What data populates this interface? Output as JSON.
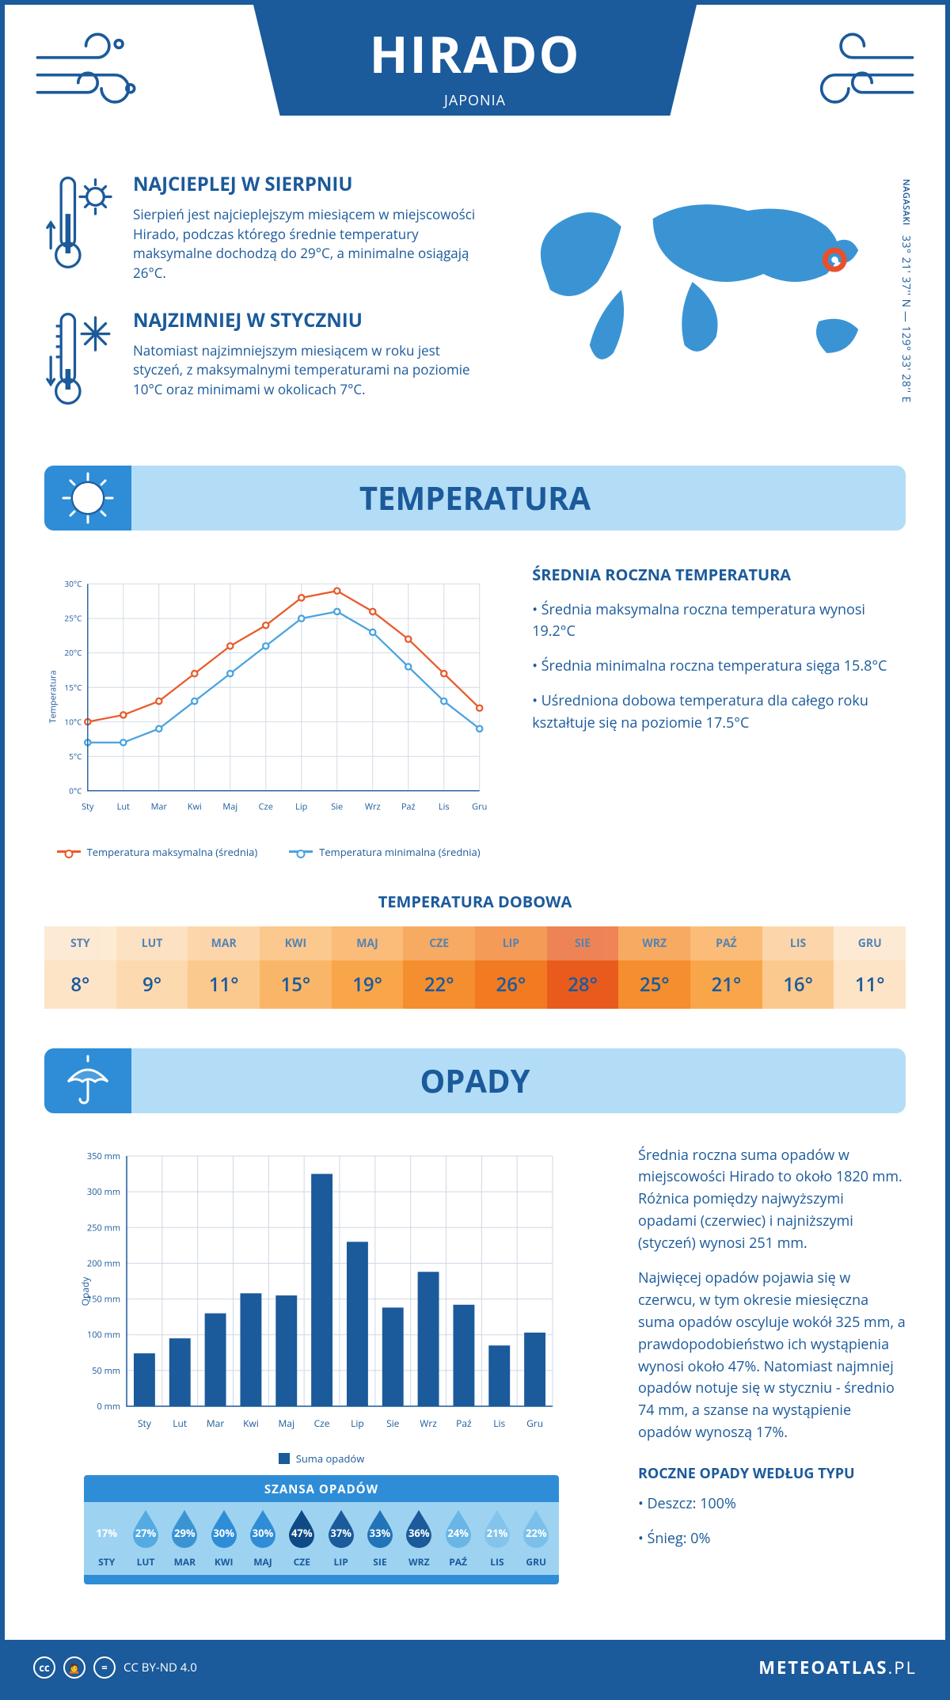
{
  "header": {
    "city": "HIRADO",
    "country": "JAPONIA",
    "region": "NAGASAKI",
    "coords": "33° 21' 37'' N — 129° 33' 28'' E",
    "marker": {
      "cx_pct": 82,
      "cy_pct": 40
    }
  },
  "colors": {
    "brand": "#1b5a9b",
    "light_blue_banner": "#b3ddf6",
    "mid_blue": "#2e8dd6",
    "grid": "#cfd8e3",
    "max_line": "#e95b2b",
    "min_line": "#4aa3e0",
    "bar_fill": "#1b5a9b",
    "map_fill": "#3a94d4",
    "marker_ring": "#e9502b"
  },
  "facts": {
    "warm": {
      "title": "NAJCIEPLEJ W SIERPNIU",
      "body": "Sierpień jest najcieplejszym miesiącem w miejscowości Hirado, podczas którego średnie temperatury maksymalne dochodzą do 29°C, a minimalne osiągają 26°C."
    },
    "cold": {
      "title": "NAJZIMNIEJ W STYCZNIU",
      "body": "Natomiast najzimniejszym miesiącem w roku jest styczeń, z maksymalnymi temperaturami na poziomie 10°C oraz minimami w okolicach 7°C."
    }
  },
  "months_short_upper": [
    "STY",
    "LUT",
    "MAR",
    "KWI",
    "MAJ",
    "CZE",
    "LIP",
    "SIE",
    "WRZ",
    "PAŹ",
    "LIS",
    "GRU"
  ],
  "months_short": [
    "Sty",
    "Lut",
    "Mar",
    "Kwi",
    "Maj",
    "Cze",
    "Lip",
    "Sie",
    "Wrz",
    "Paź",
    "Lis",
    "Gru"
  ],
  "temperature": {
    "section_title": "TEMPERATURA",
    "y_label": "Temperatura",
    "y_ticks": [
      0,
      5,
      10,
      15,
      20,
      25,
      30
    ],
    "y_tick_labels": [
      "0°C",
      "5°C",
      "10°C",
      "15°C",
      "20°C",
      "25°C",
      "30°C"
    ],
    "ylim": [
      0,
      30
    ],
    "max_series": [
      10,
      11,
      13,
      17,
      21,
      24,
      28,
      29,
      26,
      22,
      17,
      12
    ],
    "min_series": [
      7,
      7,
      9,
      13,
      17,
      21,
      25,
      26,
      23,
      18,
      13,
      9
    ],
    "legend_max": "Temperatura maksymalna (średnia)",
    "legend_min": "Temperatura minimalna (średnia)",
    "summary_title": "ŚREDNIA ROCZNA TEMPERATURA",
    "summary_items": [
      "• Średnia maksymalna roczna temperatura wynosi 19.2°C",
      "• Średnia minimalna roczna temperatura sięga 15.8°C",
      "• Uśredniona dobowa temperatura dla całego roku kształtuje się na poziomie 17.5°C"
    ],
    "daily_title": "TEMPERATURA DOBOWA",
    "daily_values": [
      "8°",
      "9°",
      "11°",
      "15°",
      "19°",
      "22°",
      "26°",
      "28°",
      "25°",
      "21°",
      "16°",
      "11°"
    ],
    "daily_colors": [
      "#fde4c6",
      "#fcd9ae",
      "#fbc98e",
      "#fab668",
      "#f9a64b",
      "#f58e2e",
      "#f27a21",
      "#e95b1d",
      "#f58e2e",
      "#f9a64b",
      "#fbc98e",
      "#fde4c6"
    ]
  },
  "precip": {
    "section_title": "OPADY",
    "y_label": "Opady",
    "y_ticks": [
      0,
      50,
      100,
      150,
      200,
      250,
      300,
      350
    ],
    "y_tick_labels": [
      "0 mm",
      "50 mm",
      "100 mm",
      "150 mm",
      "200 mm",
      "250 mm",
      "300 mm",
      "350 mm"
    ],
    "ylim": [
      0,
      350
    ],
    "values": [
      74,
      95,
      130,
      158,
      155,
      325,
      230,
      138,
      188,
      142,
      85,
      103
    ],
    "legend": "Suma opadów",
    "summary_p1": "Średnia roczna suma opadów w miejscowości Hirado to około 1820 mm. Różnica pomiędzy najwyższymi opadami (czerwiec) i najniższymi (styczeń) wynosi 251 mm.",
    "summary_p2": "Najwięcej opadów pojawia się w czerwcu, w tym okresie miesięczna suma opadów oscyluje wokół 325 mm, a prawdopodobieństwo ich wystąpienia wynosi około 47%. Natomiast najmniej opadów notuje się w styczniu - średnio 74 mm, a szanse na wystąpienie opadów wynoszą 17%.",
    "chance_title": "SZANSA OPADÓW",
    "chance_values": [
      "17%",
      "27%",
      "29%",
      "30%",
      "30%",
      "47%",
      "37%",
      "33%",
      "36%",
      "24%",
      "21%",
      "22%"
    ],
    "chance_colors": [
      "#9dd3f1",
      "#53abe2",
      "#3a94d4",
      "#2e8dd6",
      "#2e8dd6",
      "#0e4a85",
      "#1b5a9b",
      "#2274b8",
      "#1b5a9b",
      "#69b6e6",
      "#84c4ec",
      "#7bc0ea"
    ],
    "by_type_title": "ROCZNE OPADY WEDŁUG TYPU",
    "by_type_items": [
      "• Deszcz: 100%",
      "• Śnieg: 0%"
    ]
  },
  "footer": {
    "license": "CC BY-ND 4.0",
    "site_main": "METEOATLAS",
    "site_tld": ".PL"
  }
}
